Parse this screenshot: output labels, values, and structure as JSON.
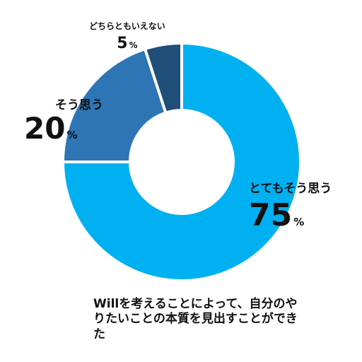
{
  "chart_data": {
    "type": "pie",
    "donut": true,
    "slices": [
      {
        "label": "とてもそう思う",
        "value": 75,
        "color": "#00B0F0"
      },
      {
        "label": "そう思う",
        "value": 20,
        "color": "#2E75B6"
      },
      {
        "label": "どちらともいえない",
        "value": 5,
        "color": "#1F4E79"
      }
    ],
    "unit": "%",
    "caption": "Willを考えることによって、自分のやりたいことの本質を見出すことができた"
  }
}
